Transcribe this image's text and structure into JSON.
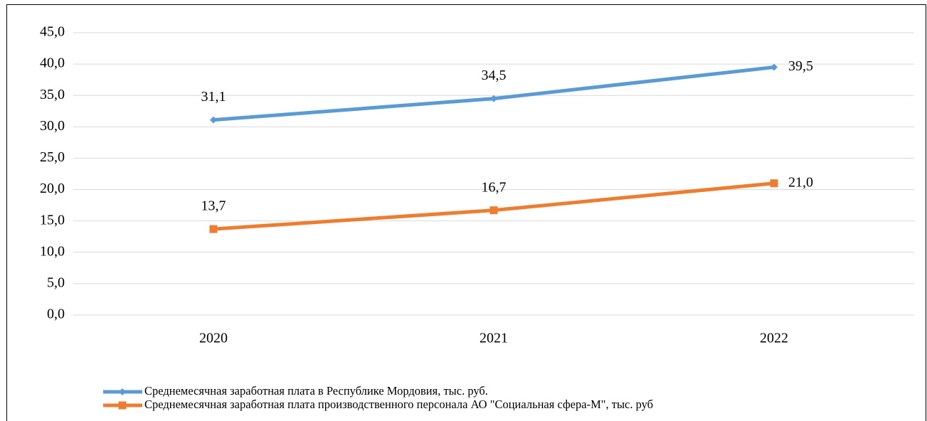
{
  "chart_data": {
    "type": "line",
    "categories": [
      "2020",
      "2021",
      "2022"
    ],
    "series": [
      {
        "name": "Среднемесячная заработная плата в Республике Мордовия, тыс. руб.",
        "color": "#5b9bd5",
        "marker": "diamond",
        "values": [
          31.1,
          34.5,
          39.5
        ],
        "value_labels": [
          "31,1",
          "34,5",
          "39,5"
        ]
      },
      {
        "name": "Среднемесячная заработная плата производственного персонала АО \"Социальная сфера-М\", тыс. руб",
        "color": "#ed7d31",
        "marker": "square",
        "values": [
          13.7,
          16.7,
          21.0
        ],
        "value_labels": [
          "13,7",
          "16,7",
          "21,0"
        ]
      }
    ],
    "ylim": [
      0,
      45
    ],
    "yticks": [
      {
        "value": 0,
        "label": "0,0"
      },
      {
        "value": 5,
        "label": "5,0"
      },
      {
        "value": 10,
        "label": "10,0"
      },
      {
        "value": 15,
        "label": "15,0"
      },
      {
        "value": 20,
        "label": "20,0"
      },
      {
        "value": 25,
        "label": "25,0"
      },
      {
        "value": 30,
        "label": "30,0"
      },
      {
        "value": 35,
        "label": "35,0"
      },
      {
        "value": 40,
        "label": "40,0"
      },
      {
        "value": 45,
        "label": "45,0"
      }
    ],
    "grid": true
  }
}
